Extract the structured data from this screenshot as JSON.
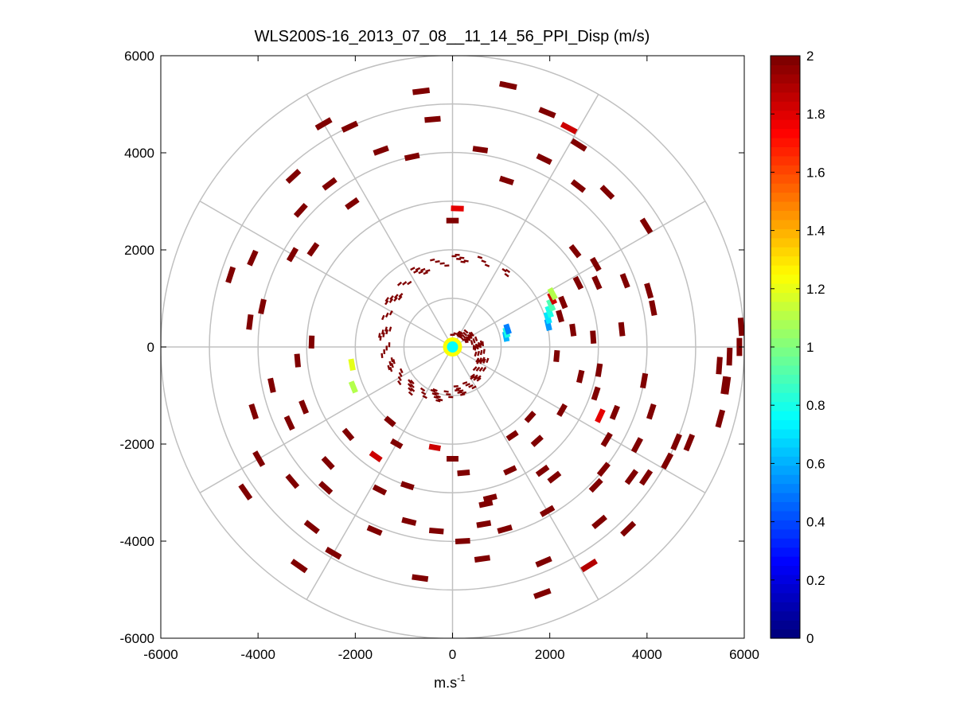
{
  "chart_data": {
    "type": "heatmap",
    "subtype": "polar-ppi",
    "title": "WLS200S-16_2013_07_08__11_14_56_PPI_Disp (m/s)",
    "xlabel": "m.s",
    "xlabel_superscript": "-1",
    "ylabel": "",
    "xlim": [
      -6000,
      6000
    ],
    "ylim": [
      -6000,
      6000
    ],
    "xticks": [
      -6000,
      -4000,
      -2000,
      0,
      2000,
      4000,
      6000
    ],
    "yticks": [
      -6000,
      -4000,
      -2000,
      0,
      2000,
      4000,
      6000
    ],
    "xtick_labels": [
      "-6000",
      "-4000",
      "-2000",
      "0",
      "2000",
      "4000",
      "6000"
    ],
    "ytick_labels": [
      "-6000",
      "-4000",
      "-2000",
      "0",
      "2000",
      "4000",
      "6000"
    ],
    "polar_grid": {
      "ring_radii": [
        1000,
        2000,
        3000,
        4000,
        5000,
        6000
      ],
      "spoke_angles_deg": [
        0,
        30,
        60,
        90,
        120,
        150,
        180,
        210,
        240,
        270,
        300,
        330
      ]
    },
    "colorbar": {
      "colormap": "jet",
      "range": [
        0,
        2
      ],
      "ticks": [
        0,
        0.2,
        0.4,
        0.6,
        0.8,
        1,
        1.2,
        1.4,
        1.6,
        1.8,
        2
      ],
      "tick_labels": [
        "0",
        "0.2",
        "0.4",
        "0.6",
        "0.8",
        "1",
        "1.2",
        "1.4",
        "1.6",
        "1.8",
        "2"
      ]
    },
    "cells": [
      [
        90,
        5900,
        2
      ],
      [
        92,
        5700,
        2
      ],
      [
        86,
        5950,
        2
      ],
      [
        94,
        5500,
        2
      ],
      [
        98,
        5650,
        2
      ],
      [
        105,
        5700,
        2
      ],
      [
        112,
        5250,
        2
      ],
      [
        118,
        5000,
        2
      ],
      [
        126,
        4550,
        2
      ],
      [
        134,
        4100,
        2
      ],
      [
        142,
        3400,
        2.0
      ],
      [
        138,
        2600,
        2
      ],
      [
        121,
        3700,
        2
      ],
      [
        115,
        3350,
        1.8
      ],
      [
        108,
        3100,
        2
      ],
      [
        103,
        2700,
        2
      ],
      [
        99,
        3050,
        2
      ],
      [
        95,
        2150,
        2
      ],
      [
        84,
        3500,
        2
      ],
      [
        86,
        2900,
        2
      ],
      [
        82,
        2500,
        2
      ],
      [
        79,
        4200,
        2
      ],
      [
        74,
        4200,
        2
      ],
      [
        69,
        3800,
        2
      ],
      [
        60,
        3400,
        2
      ],
      [
        52,
        3200,
        2
      ],
      [
        66,
        3250,
        2
      ],
      [
        58,
        4700,
        2
      ],
      [
        45,
        4500,
        2
      ],
      [
        38,
        4200,
        2
      ],
      [
        32,
        4900,
        2
      ],
      [
        28,
        5100,
        1.85
      ],
      [
        22,
        5200,
        2
      ],
      [
        12,
        5500,
        2
      ],
      [
        26,
        4300,
        2
      ],
      [
        18,
        3600,
        2
      ],
      [
        8,
        4100,
        2
      ],
      [
        63,
        2900,
        2
      ],
      [
        68,
        2450,
        2
      ],
      [
        74,
        2300,
        2
      ],
      [
        77,
        2020,
        0.55
      ],
      [
        73,
        2050,
        0.7
      ],
      [
        70,
        2120,
        0.8
      ],
      [
        67,
        2200,
        0.9
      ],
      [
        64,
        2280,
        1.85
      ],
      [
        62,
        2330,
        1.1
      ],
      [
        79,
        1120,
        0.6
      ],
      [
        75,
        1150,
        0.8
      ],
      [
        72,
        1190,
        0.5
      ],
      [
        0,
        2600,
        2
      ],
      [
        2,
        2850,
        1.8
      ],
      [
        -5,
        4700,
        2
      ],
      [
        -7,
        5300,
        2
      ],
      [
        -12,
        4000,
        2
      ],
      [
        -20,
        4300,
        2
      ],
      [
        -25,
        5000,
        2
      ],
      [
        -30,
        5300,
        2
      ],
      [
        -35,
        3600,
        2
      ],
      [
        -37,
        4200,
        2
      ],
      [
        -43,
        4800,
        2
      ],
      [
        -48,
        4200,
        2
      ],
      [
        -55,
        3500,
        2
      ],
      [
        -60,
        3800,
        2
      ],
      [
        -66,
        4500,
        2
      ],
      [
        -72,
        4800,
        2
      ],
      [
        -78,
        4000,
        2
      ],
      [
        -83,
        4200,
        2
      ],
      [
        -88,
        2900,
        2
      ],
      [
        -95,
        3200,
        2
      ],
      [
        -102,
        3800,
        2
      ],
      [
        -108,
        4300,
        2
      ],
      [
        -112,
        3300,
        2
      ],
      [
        -115,
        3700,
        2
      ],
      [
        -120,
        4600,
        2
      ],
      [
        -125,
        5200,
        2
      ],
      [
        -130,
        4300,
        2
      ],
      [
        -133,
        3500,
        2
      ],
      [
        -138,
        3900,
        2
      ],
      [
        -142,
        4700,
        2
      ],
      [
        -145,
        5500,
        2
      ],
      [
        -150,
        4900,
        2
      ],
      [
        -153,
        3300,
        2
      ],
      [
        -157,
        4100,
        2
      ],
      [
        -162,
        3000,
        2
      ],
      [
        -166,
        3700,
        2
      ],
      [
        -170,
        2100,
        1.85
      ],
      [
        -172,
        4800,
        2
      ],
      [
        -150,
        2300,
        2
      ],
      [
        -140,
        2000,
        2
      ],
      [
        -112,
        2200,
        1.1
      ],
      [
        -100,
        2100,
        1.2
      ],
      [
        -145,
        2750,
        1.85
      ],
      [
        -130,
        2800,
        2
      ],
      [
        180,
        2300,
        2
      ],
      [
        175,
        2600,
        2
      ],
      [
        177,
        4000,
        2
      ],
      [
        172,
        4400,
        2
      ],
      [
        166,
        3200,
        2
      ],
      [
        160,
        5400,
        2
      ],
      [
        157,
        4800,
        2
      ],
      [
        150,
        3900,
        2
      ],
      [
        148,
        5300,
        1.9
      ],
      [
        144,
        3150,
        2
      ],
      [
        140,
        4700,
        2
      ],
      [
        136,
        5200,
        2
      ],
      [
        129,
        4000,
        2
      ],
      [
        124,
        4800,
        2
      ],
      [
        118,
        4300,
        2
      ],
      [
        113,
        5000,
        2
      ],
      [
        108,
        4300,
        2
      ],
      [
        100,
        4000,
        2
      ],
      [
        98,
        5700,
        2
      ],
      [
        132,
        2150,
        2
      ],
      [
        155,
        2800,
        2
      ],
      [
        168,
        3300,
        2
      ],
      [
        164,
        3900,
        2
      ],
      [
        -175,
        3800,
        2
      ],
      [
        170,
        3700,
        2
      ],
      [
        146,
        2200,
        2
      ],
      [
        120,
        2600,
        2
      ],
      [
        112,
        3600,
        2
      ]
    ]
  }
}
